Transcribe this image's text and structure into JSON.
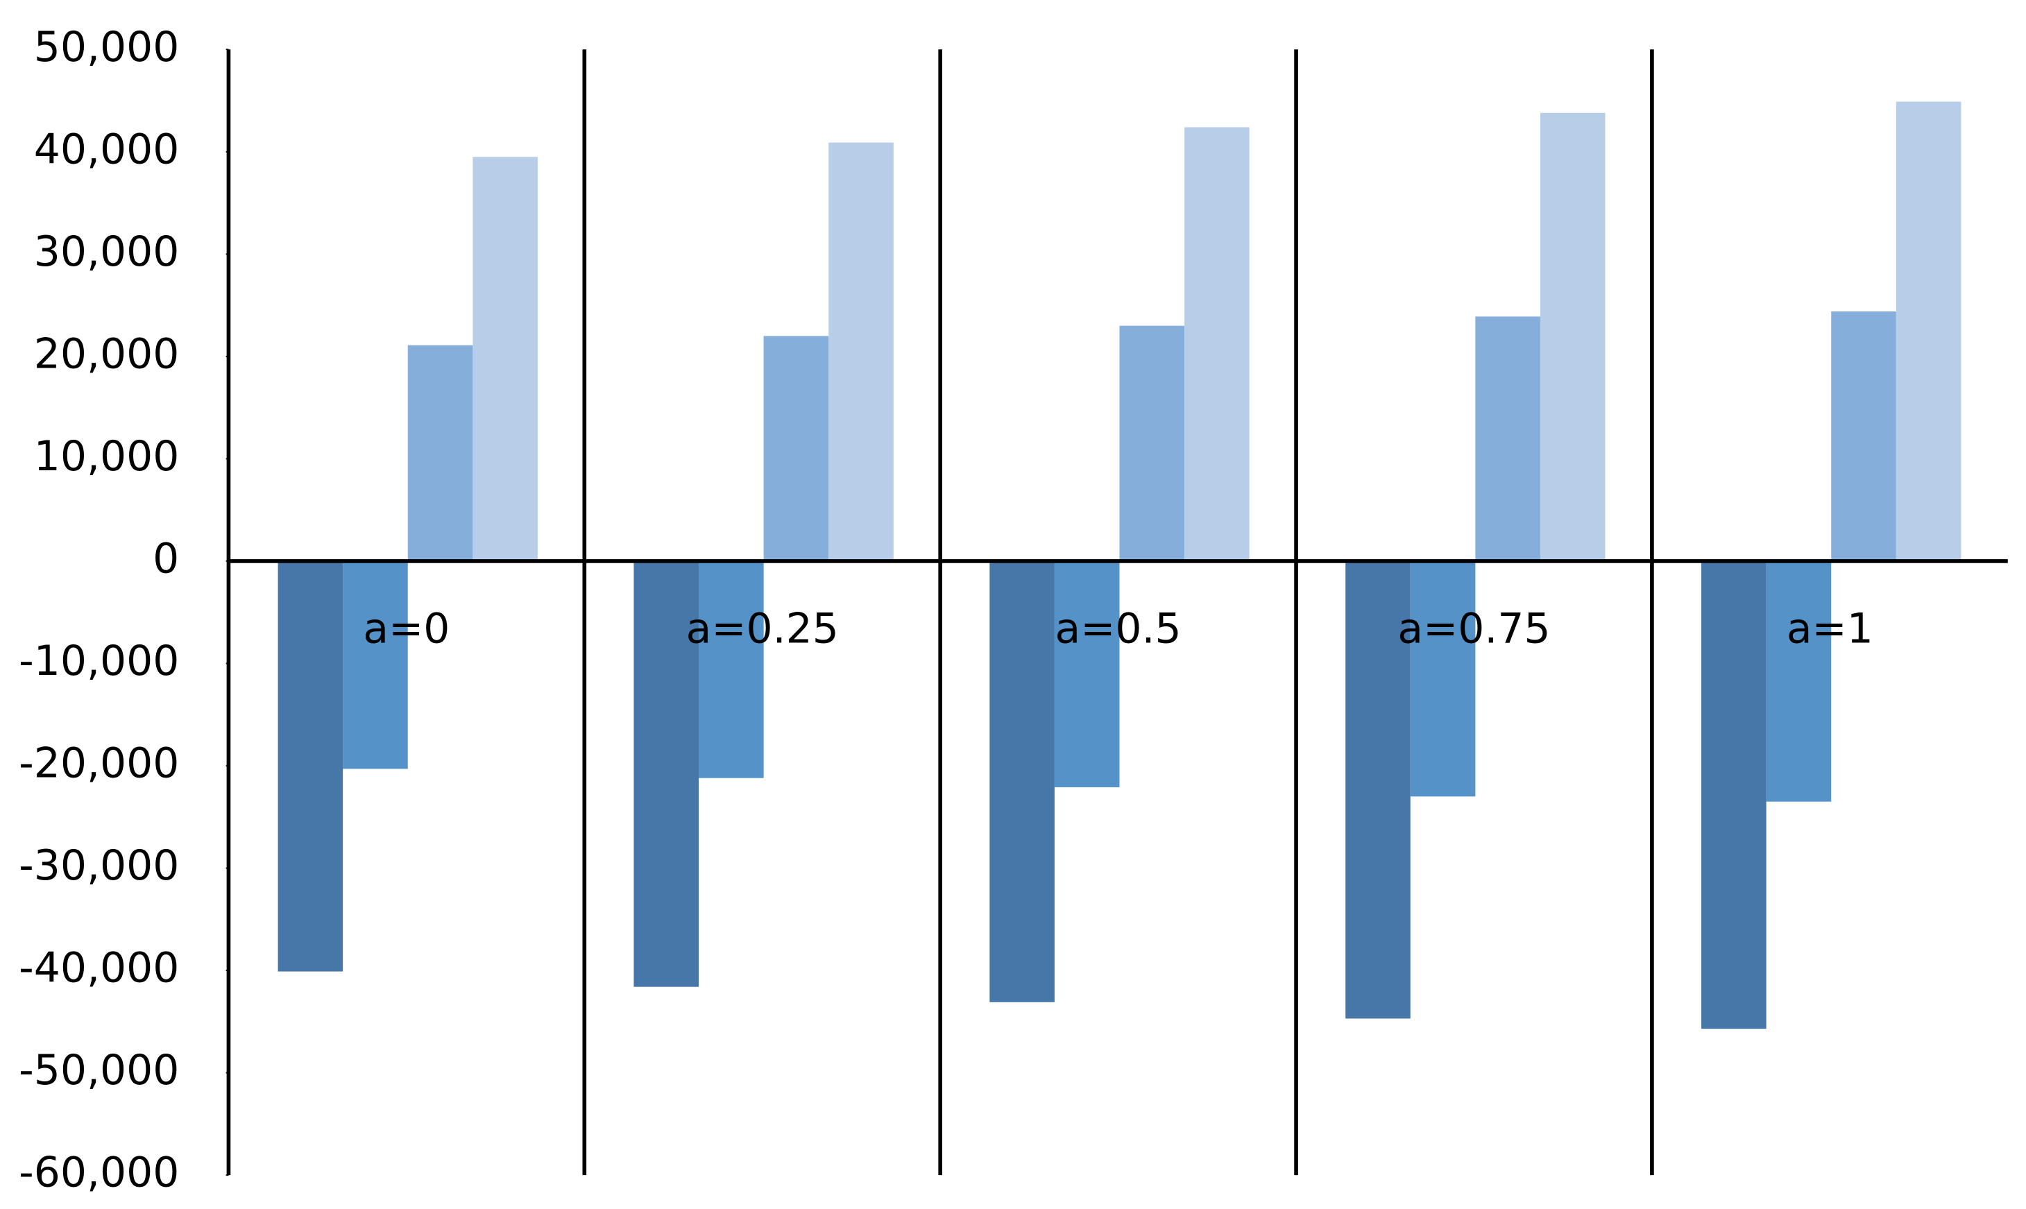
{
  "chart_data": {
    "type": "bar",
    "categories": [
      "a=0",
      "a=0.25",
      "a=0.5",
      "a=0.75",
      "a=1"
    ],
    "series": [
      {
        "color": "#4677a8",
        "values": [
          -40100,
          -41600,
          -43100,
          -44700,
          -45700
        ]
      },
      {
        "color": "#5592c8",
        "values": [
          -20300,
          -21200,
          -22100,
          -23000,
          -23500
        ]
      },
      {
        "color": "#86aedb",
        "values": [
          21100,
          22000,
          23000,
          23900,
          24400
        ]
      },
      {
        "color": "#b8cde8",
        "values": [
          39500,
          40900,
          42400,
          43800,
          44900
        ]
      }
    ],
    "ylim": [
      -60000,
      50000
    ],
    "yticks": [
      {
        "value": -60000,
        "label": "-60,000"
      },
      {
        "value": -50000,
        "label": "-50,000"
      },
      {
        "value": -40000,
        "label": "-40,000"
      },
      {
        "value": -30000,
        "label": "-30,000"
      },
      {
        "value": -20000,
        "label": "-20,000"
      },
      {
        "value": -10000,
        "label": "-10,000"
      },
      0,
      {
        "value": 10000,
        "label": "10,000"
      },
      {
        "value": 20000,
        "label": "20,000"
      },
      {
        "value": 30000,
        "label": "30,000"
      },
      {
        "value": 40000,
        "label": "40,000"
      },
      {
        "value": 50000,
        "label": "50,000"
      }
    ],
    "grid": false
  }
}
